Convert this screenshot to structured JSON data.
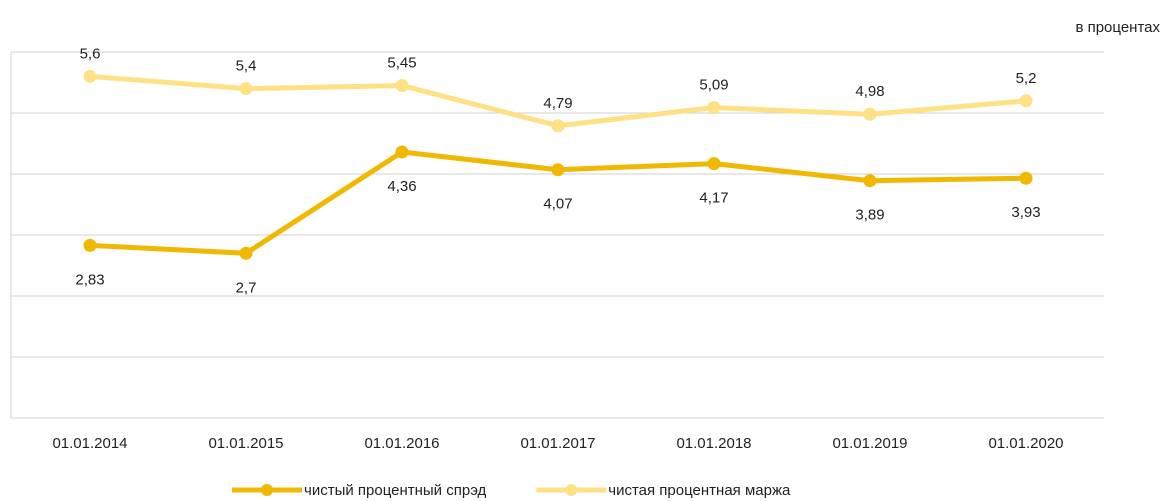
{
  "chart_data": {
    "type": "line",
    "annotation": "в процентах",
    "categories": [
      "01.01.2014",
      "01.01.2015",
      "01.01.2016",
      "01.01.2017",
      "01.01.2018",
      "01.01.2019",
      "01.01.2020"
    ],
    "series": [
      {
        "name": "чистый процентный спрэд",
        "color": "#f0b800",
        "values": [
          2.83,
          2.7,
          4.36,
          4.07,
          4.17,
          3.89,
          3.93
        ],
        "value_labels": [
          "2,83",
          "2,7",
          "4,36",
          "4,07",
          "4,17",
          "3,89",
          "3,93"
        ]
      },
      {
        "name": "чистая процентная маржа",
        "color": "#fde184",
        "values": [
          5.6,
          5.4,
          5.45,
          4.79,
          5.09,
          4.98,
          5.2
        ],
        "value_labels": [
          "5,6",
          "5,4",
          "5,45",
          "4,79",
          "5,09",
          "4,98",
          "5,2"
        ]
      }
    ],
    "ylim": [
      0,
      6
    ],
    "yticks": [
      0,
      1,
      2,
      3,
      4,
      5,
      6
    ],
    "grid": true,
    "legend": "bottom"
  }
}
